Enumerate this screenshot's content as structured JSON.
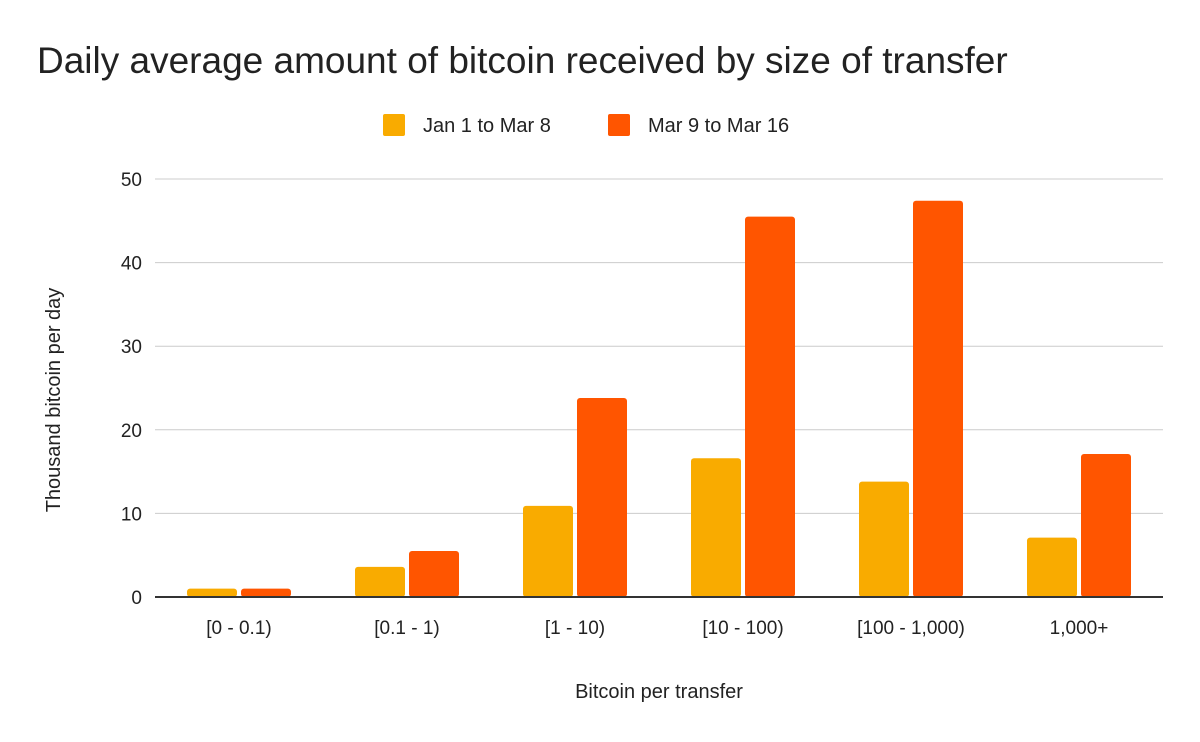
{
  "chart_data": {
    "type": "bar",
    "title": "Daily average amount of bitcoin received by size of transfer",
    "xlabel": "Bitcoin per transfer",
    "ylabel": "Thousand bitcoin per day",
    "categories": [
      "[0 - 0.1)",
      "[0.1 - 1)",
      "[1 - 10)",
      "[10 - 100)",
      "[100 - 1,000)",
      "1,000+"
    ],
    "series": [
      {
        "name": "Jan 1 to Mar 8",
        "color": "#f9ab00",
        "values": [
          1.0,
          3.6,
          10.9,
          16.6,
          13.8,
          7.1
        ]
      },
      {
        "name": "Mar 9 to Mar 16",
        "color": "#ff5500",
        "values": [
          1.0,
          5.5,
          23.8,
          45.5,
          47.4,
          17.1
        ]
      }
    ],
    "ylim": [
      0,
      50
    ],
    "yticks": [
      0,
      10,
      20,
      30,
      40,
      50
    ],
    "grid": true,
    "legend": "top-center"
  }
}
